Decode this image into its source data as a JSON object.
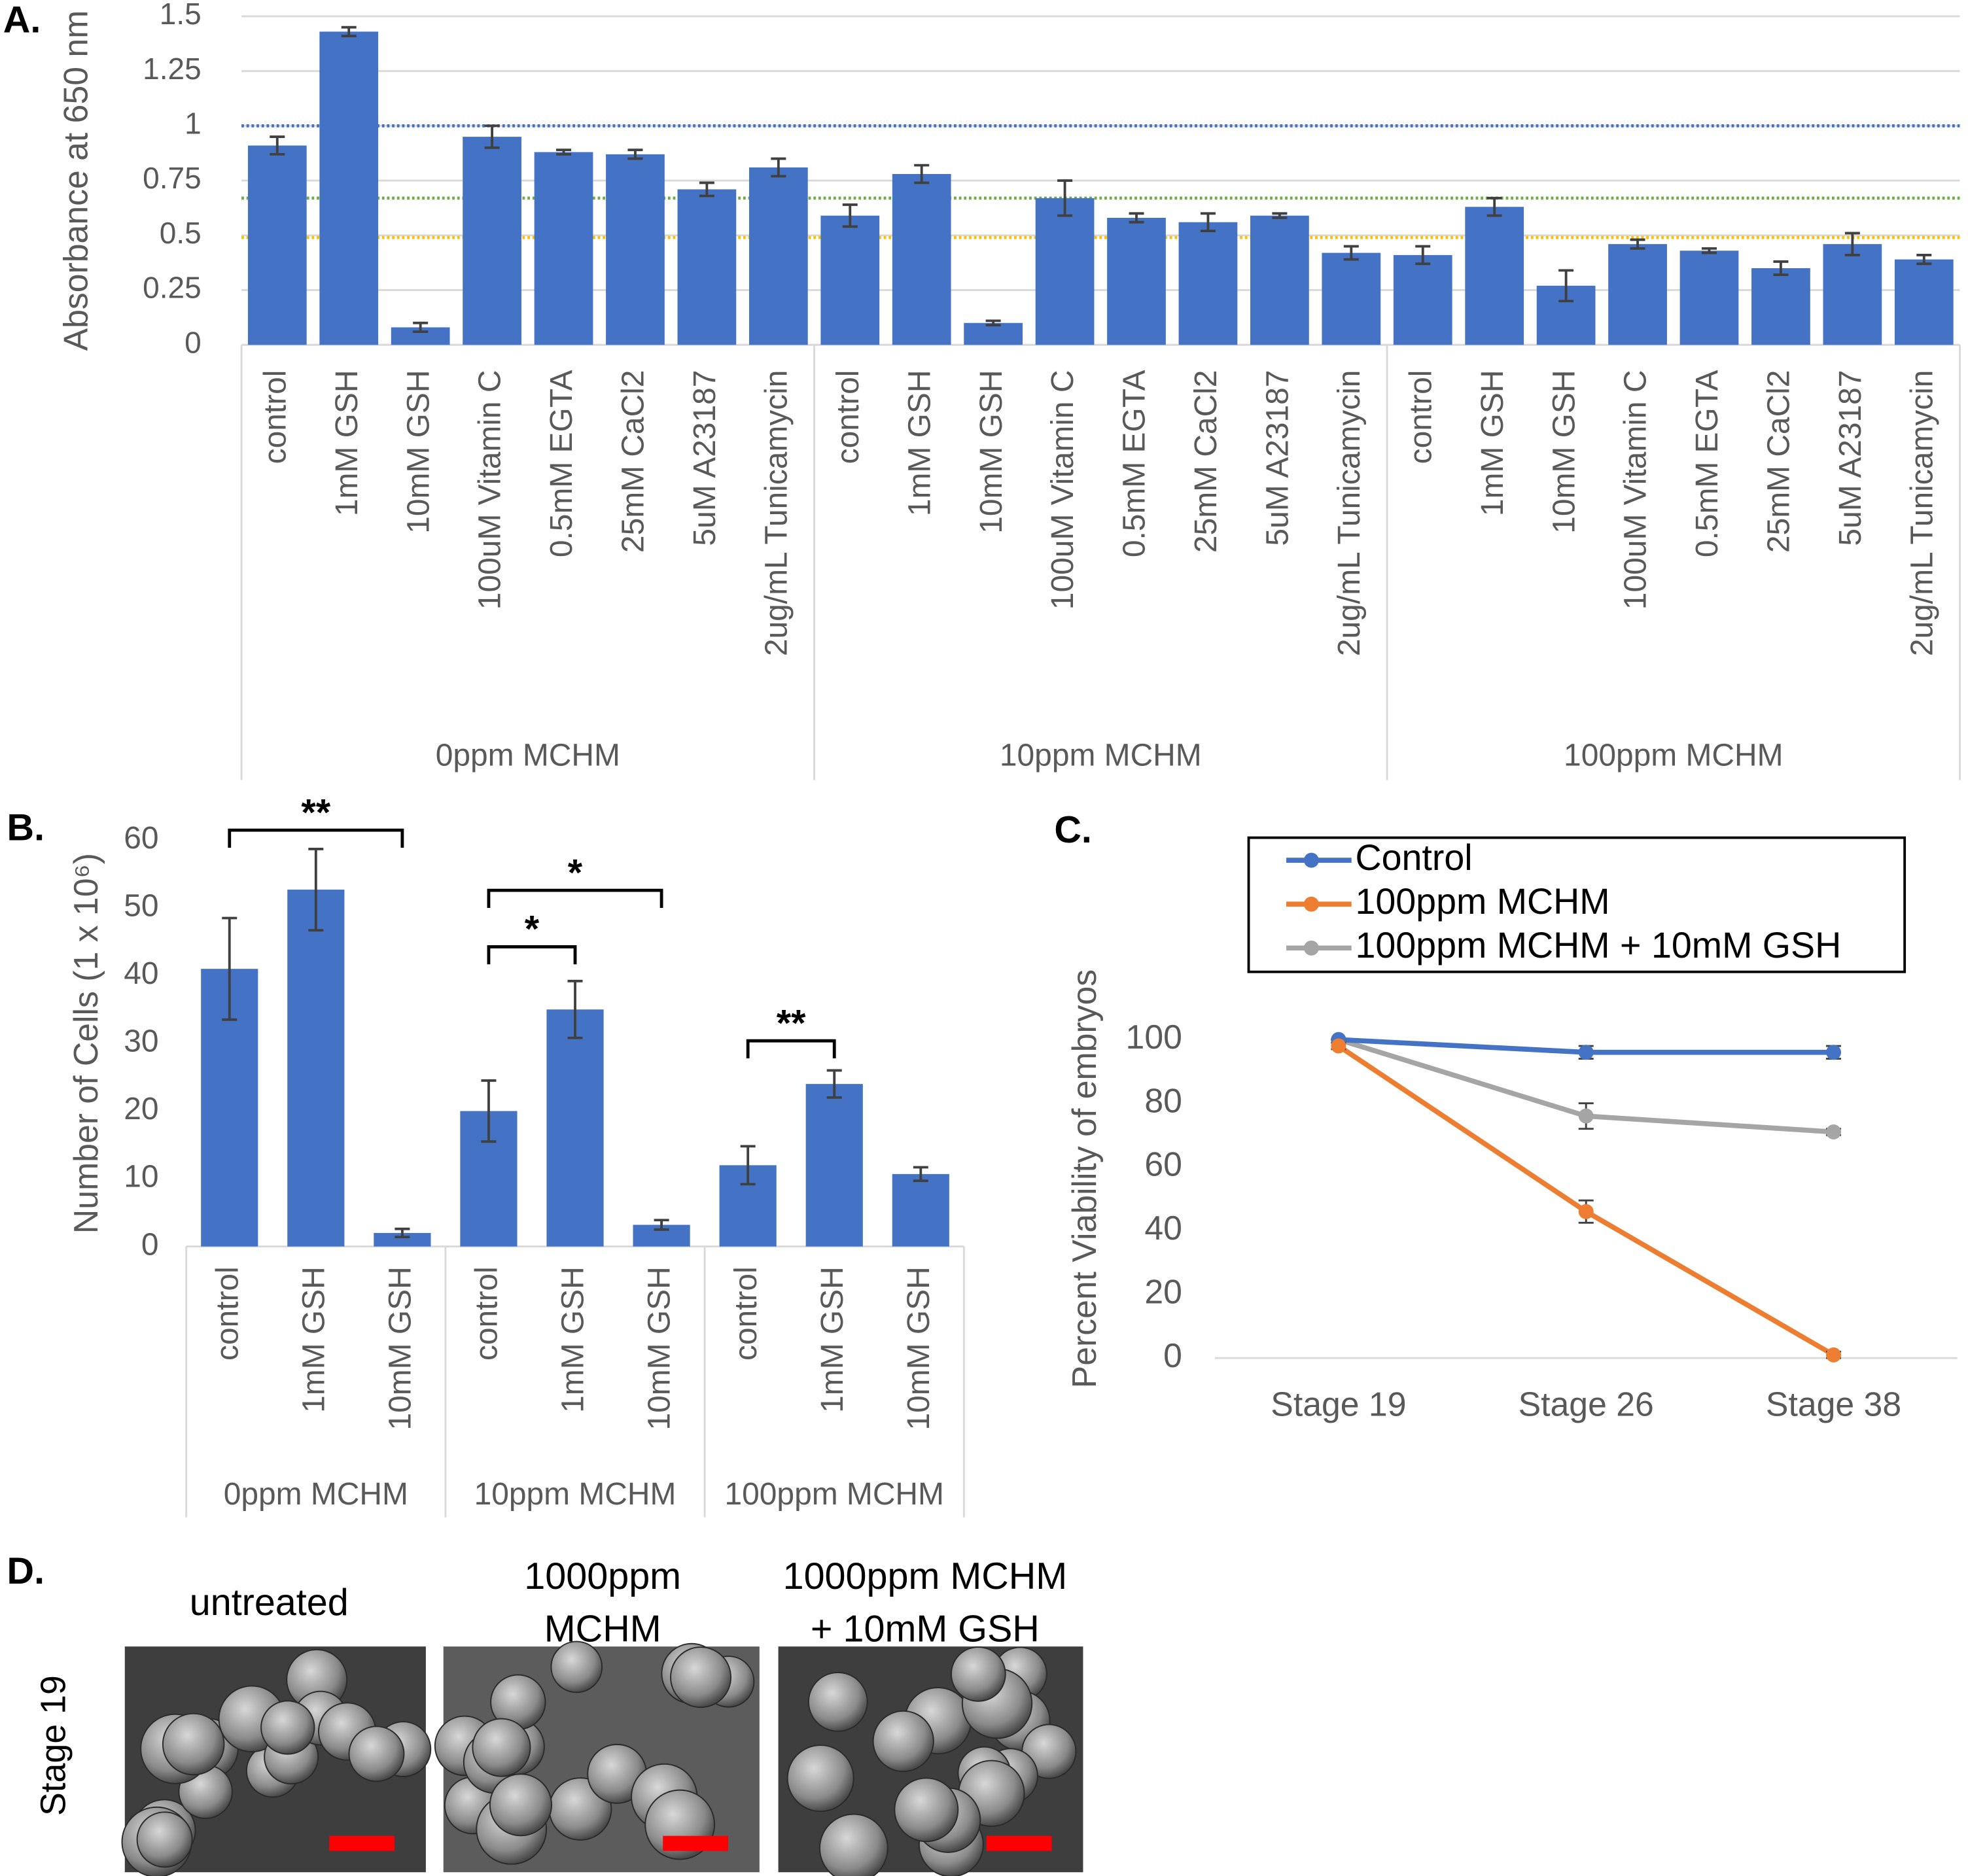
{
  "chart_data": [
    {
      "type": "bar",
      "panel_label": "A.",
      "y_label": "Absorbance at 650 nm",
      "categories": [
        "control",
        "1mM GSH",
        "10mM GSH",
        "100uM Vitamin C",
        "0.5mM EGTA",
        "25mM CaCl2",
        "5uM A23187",
        "2ug/mL Tunicamycin",
        "control",
        "1mM GSH",
        "10mM GSH",
        "100uM Vitamin C",
        "0.5mM EGTA",
        "25mM CaCl2",
        "5uM A23187",
        "2ug/mL Tunicamycin",
        "control",
        "1mM GSH",
        "10mM GSH",
        "100uM Vitamin C",
        "0.5mM EGTA",
        "25mM CaCl2",
        "5uM A23187",
        "2ug/mL Tunicamycin"
      ],
      "groups": [
        "0ppm MCHM",
        "10ppm MCHM",
        "100ppm MCHM"
      ],
      "series": [
        {
          "color": "#4472c4",
          "values": [
            0.91,
            1.43,
            0.08,
            0.95,
            0.88,
            0.87,
            0.71,
            0.81,
            0.59,
            0.78,
            0.1,
            0.67,
            0.58,
            0.56,
            0.59,
            0.42,
            0.41,
            0.63,
            0.27,
            0.46,
            0.43,
            0.35,
            0.46,
            0.39
          ],
          "errors": [
            0.04,
            0.02,
            0.02,
            0.05,
            0.01,
            0.02,
            0.03,
            0.04,
            0.05,
            0.04,
            0.01,
            0.08,
            0.02,
            0.04,
            0.01,
            0.03,
            0.04,
            0.04,
            0.07,
            0.02,
            0.01,
            0.03,
            0.05,
            0.02
          ]
        }
      ],
      "reference_lines": [
        {
          "value": 1,
          "color": "#4472c4"
        },
        {
          "value": 0.67,
          "color": "#70ad47"
        },
        {
          "value": 0.49,
          "color": "#ffc000"
        }
      ],
      "ylim": [
        0,
        1.5
      ],
      "yticks": [
        0,
        0.25,
        0.5,
        0.75,
        1,
        1.25,
        1.5
      ],
      "grid": true
    },
    {
      "type": "bar",
      "panel_label": "B.",
      "y_label": "Number of Cells (1 x 10⁶)",
      "categories": [
        "control",
        "1mM GSH",
        "10mM GSH",
        "control",
        "1mM GSH",
        "10mM GSH",
        "control",
        "1mM GSH",
        "10mM GSH"
      ],
      "groups": [
        "0ppm MCHM",
        "10ppm MCHM",
        "100ppm MCHM"
      ],
      "series": [
        {
          "color": "#4472c4",
          "values": [
            41,
            52.7,
            2,
            20,
            35,
            3.2,
            12,
            24,
            10.7
          ],
          "errors": [
            7.5,
            6,
            0.6,
            4.5,
            4.2,
            0.7,
            2.8,
            2,
            1
          ]
        }
      ],
      "annotations": [
        "**",
        "*",
        "*",
        "**"
      ],
      "ylim": [
        0,
        60
      ],
      "yticks": [
        0,
        10,
        20,
        30,
        40,
        50,
        60
      ],
      "grid": false
    },
    {
      "type": "line",
      "panel_label": "C.",
      "y_label": "Percent Viability of embryos",
      "categories": [
        "Stage 19",
        "Stage 26",
        "Stage 38"
      ],
      "series": [
        {
          "name": "Control",
          "color": "#4472c4",
          "values": [
            100,
            96,
            96
          ],
          "errors": [
            0,
            2,
            2
          ]
        },
        {
          "name": "100ppm MCHM",
          "color": "#ed7d31",
          "values": [
            98,
            46,
            1
          ],
          "errors": [
            1,
            3.5,
            1
          ]
        },
        {
          "name": "100ppm MCHM + 10mM GSH",
          "color": "#a5a5a5",
          "values": [
            100,
            76,
            71
          ],
          "errors": [
            0,
            4,
            1
          ]
        }
      ],
      "ylim": [
        0,
        100
      ],
      "yticks": [
        0,
        20,
        40,
        60,
        80,
        100
      ],
      "grid": false
    }
  ],
  "panel_d": {
    "panel_label": "D.",
    "row_label": "Stage 19",
    "columns": [
      [
        "untreated"
      ],
      [
        "1000ppm",
        "MCHM"
      ],
      [
        "1000ppm MCHM",
        "+ 10mM GSH"
      ]
    ]
  }
}
